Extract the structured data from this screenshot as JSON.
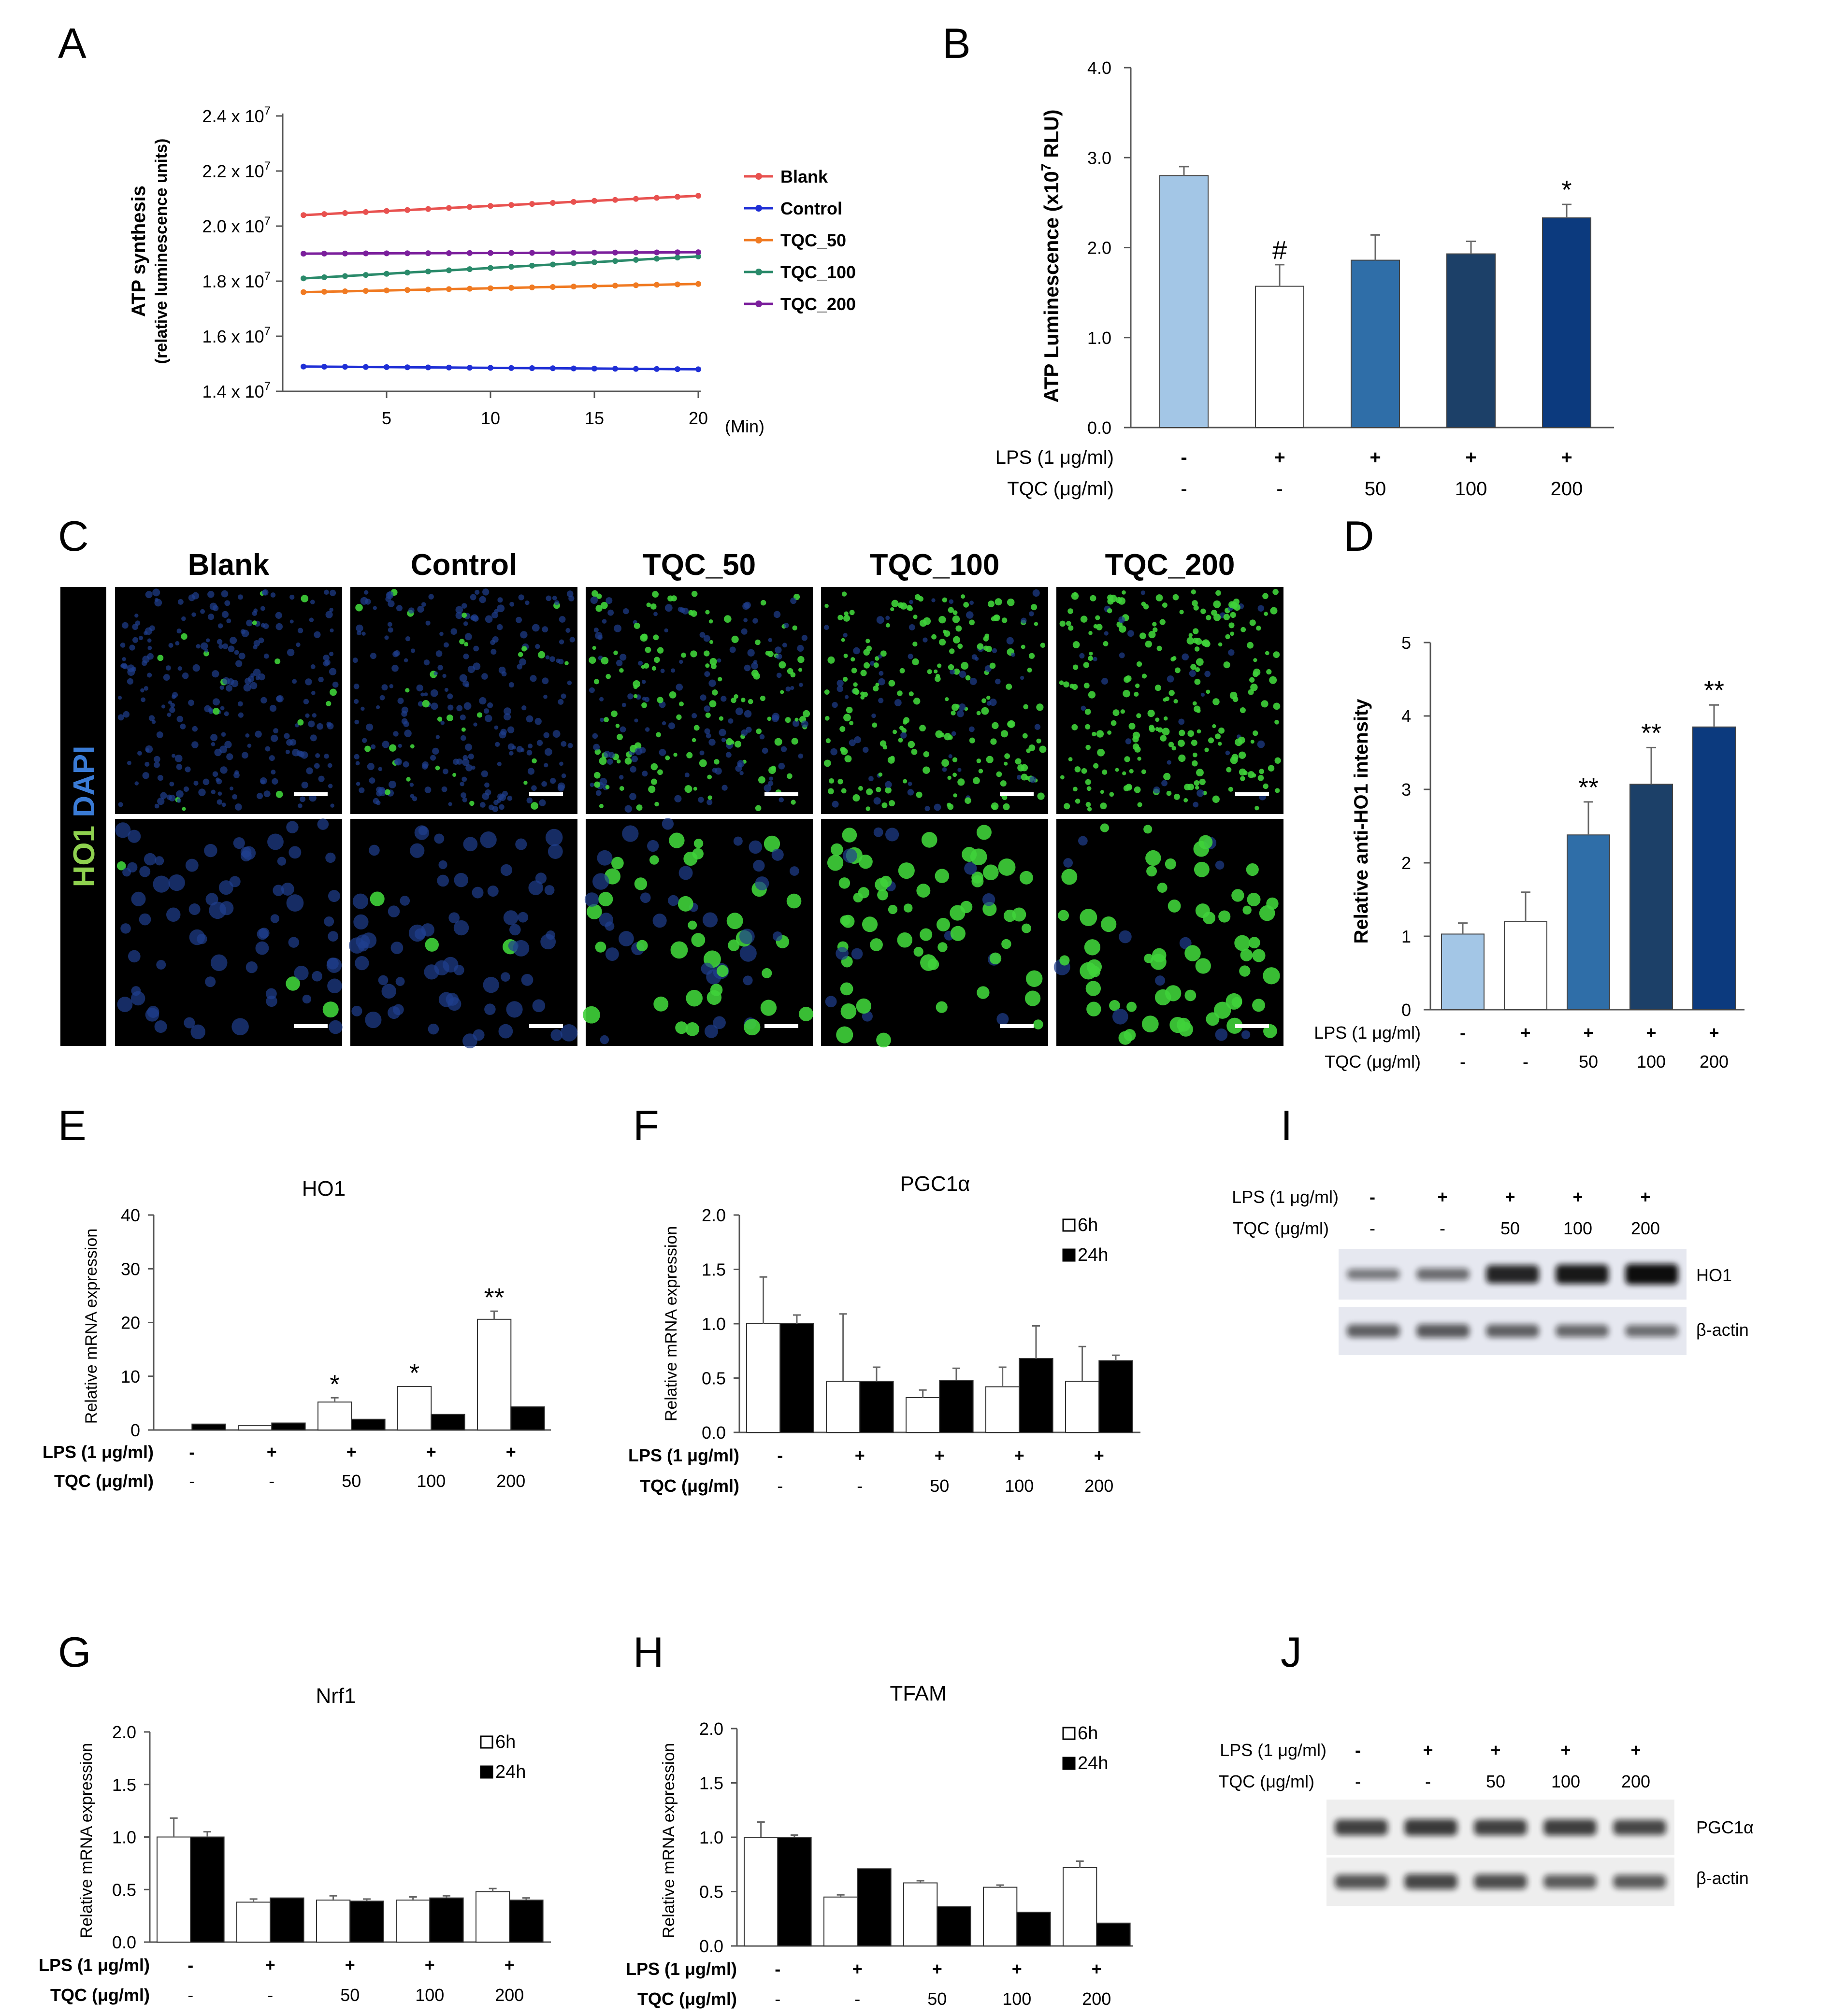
{
  "panels": {
    "A": {
      "letter": "A",
      "type": "line",
      "ylabel_main": "ATP synthesis",
      "ylabel_sub": "(relative luminescence units)",
      "xunit": "(Min)",
      "xticks": [
        5,
        10,
        15,
        20
      ],
      "xlim": [
        0,
        20
      ],
      "ylim": [
        1.4,
        2.4
      ],
      "yticks": [
        {
          "v": 1.4,
          "label": "1.4 x 10",
          "exp": "7"
        },
        {
          "v": 1.6,
          "label": "1.6 x 10",
          "exp": "7"
        },
        {
          "v": 1.8,
          "label": "1.8 x 10",
          "exp": "7"
        },
        {
          "v": 2.0,
          "label": "2.0 x 10",
          "exp": "7"
        },
        {
          "v": 2.2,
          "label": "2.2 x 10",
          "exp": "7"
        },
        {
          "v": 2.4,
          "label": "2.4 x 10",
          "exp": "7"
        }
      ],
      "series": [
        {
          "name": "Blank",
          "color": "#e8514f",
          "start": 2.04,
          "end": 2.11
        },
        {
          "name": "Control",
          "color": "#1f2fd6",
          "start": 1.49,
          "end": 1.48
        },
        {
          "name": "TQC_50",
          "color": "#f07a22",
          "start": 1.76,
          "end": 1.79
        },
        {
          "name": "TQC_100",
          "color": "#2a8a6a",
          "start": 1.81,
          "end": 1.89
        },
        {
          "name": "TQC_200",
          "color": "#7b1f9c",
          "start": 1.9,
          "end": 1.905
        }
      ]
    },
    "B": {
      "letter": "B",
      "type": "bar",
      "ylabel": "ATP Luminescence (x10",
      "ylabel_exp": "7",
      "ylabel_end": " RLU)",
      "ylim": [
        0,
        4
      ],
      "yticks": [
        "0.0",
        "1.0",
        "2.0",
        "3.0",
        "4.0"
      ],
      "values": [
        2.8,
        1.57,
        1.86,
        1.93,
        2.33
      ],
      "errors": [
        0.1,
        0.24,
        0.28,
        0.14,
        0.15
      ],
      "colors": [
        "#a3c6e6",
        "#ffffff",
        "#2f6ea8",
        "#1c4068",
        "#0c3a7e"
      ],
      "marks": [
        "",
        "#",
        "",
        "",
        "*"
      ]
    },
    "C": {
      "letter": "C",
      "titles": [
        "Blank",
        "Control",
        "TQC_50",
        "TQC_100",
        "TQC_200"
      ],
      "side_label_1": "HO1",
      "side_label_2": "DAPI"
    },
    "D": {
      "letter": "D",
      "type": "bar",
      "ylabel": "Relative anti-HO1 intensity",
      "ylim": [
        0,
        5
      ],
      "yticks": [
        "0",
        "1",
        "2",
        "3",
        "4",
        "5"
      ],
      "values": [
        1.03,
        1.2,
        2.38,
        3.07,
        3.85
      ],
      "errors": [
        0.15,
        0.4,
        0.45,
        0.5,
        0.3
      ],
      "colors": [
        "#a3c6e6",
        "#ffffff",
        "#2f6ea8",
        "#1c4068",
        "#0c3a7e"
      ],
      "marks": [
        "",
        "",
        "**",
        "**",
        "**"
      ]
    },
    "E": {
      "letter": "E",
      "title": "HO1",
      "ylabel": "Relative mRNA expression",
      "ylim": [
        0,
        40
      ],
      "yticks": [
        "0",
        "10",
        "20",
        "30",
        "40"
      ],
      "values_6h": [
        0,
        0.8,
        5.2,
        8.1,
        20.6
      ],
      "errors_6h": [
        0,
        0,
        0.8,
        0,
        1.5
      ],
      "values_24h": [
        1.1,
        1.3,
        2.0,
        2.9,
        4.3
      ],
      "errors_24h": [
        0,
        0,
        0,
        0,
        0
      ],
      "marks": [
        "",
        "",
        "*",
        "*",
        "**"
      ]
    },
    "F": {
      "letter": "F",
      "title": "PGC1α",
      "ylabel": "Relative mRNA expression",
      "ylim": [
        0,
        2
      ],
      "yticks": [
        "0.0",
        "0.5",
        "1.0",
        "1.5",
        "2.0"
      ],
      "legend": [
        "6h",
        "24h"
      ],
      "values_6h": [
        1.0,
        0.47,
        0.32,
        0.42,
        0.47
      ],
      "errors_6h": [
        0.43,
        0.62,
        0.07,
        0.18,
        0.32
      ],
      "values_24h": [
        1.0,
        0.47,
        0.48,
        0.68,
        0.66
      ],
      "errors_24h": [
        0.08,
        0.13,
        0.11,
        0.3,
        0.05
      ]
    },
    "G": {
      "letter": "G",
      "title": "Nrf1",
      "ylabel": "Relative mRNA expression",
      "ylim": [
        0,
        2
      ],
      "yticks": [
        "0.0",
        "0.5",
        "1.0",
        "1.5",
        "2.0"
      ],
      "legend": [
        "6h",
        "24h"
      ],
      "values_6h": [
        1.0,
        0.38,
        0.4,
        0.4,
        0.48
      ],
      "errors_6h": [
        0.18,
        0.03,
        0.04,
        0.03,
        0.03
      ],
      "values_24h": [
        1.0,
        0.42,
        0.39,
        0.42,
        0.4
      ],
      "errors_24h": [
        0.05,
        0,
        0.02,
        0.02,
        0.02
      ]
    },
    "H": {
      "letter": "H",
      "title": "TFAM",
      "ylabel": "Relative mRNA expression",
      "ylim": [
        0,
        2
      ],
      "yticks": [
        "0.0",
        "0.5",
        "1.0",
        "1.5",
        "2.0"
      ],
      "legend": [
        "6h",
        "24h"
      ],
      "values_6h": [
        1.0,
        0.45,
        0.58,
        0.54,
        0.72
      ],
      "errors_6h": [
        0.14,
        0.02,
        0.02,
        0.02,
        0.06
      ],
      "values_24h": [
        1.0,
        0.71,
        0.36,
        0.31,
        0.21
      ],
      "errors_24h": [
        0.02,
        0,
        0,
        0,
        0
      ]
    },
    "I": {
      "letter": "I",
      "bands": [
        "HO1",
        "β-actin"
      ]
    },
    "J": {
      "letter": "J",
      "bands": [
        "PGC1α",
        "β-actin"
      ]
    }
  },
  "treatment": {
    "lps_label": "LPS (1 μg/ml)",
    "tqc_label": "TQC (μg/ml)",
    "lps": [
      "-",
      "+",
      "+",
      "+",
      "+"
    ],
    "tqc": [
      "-",
      "-",
      "50",
      "100",
      "200"
    ]
  }
}
